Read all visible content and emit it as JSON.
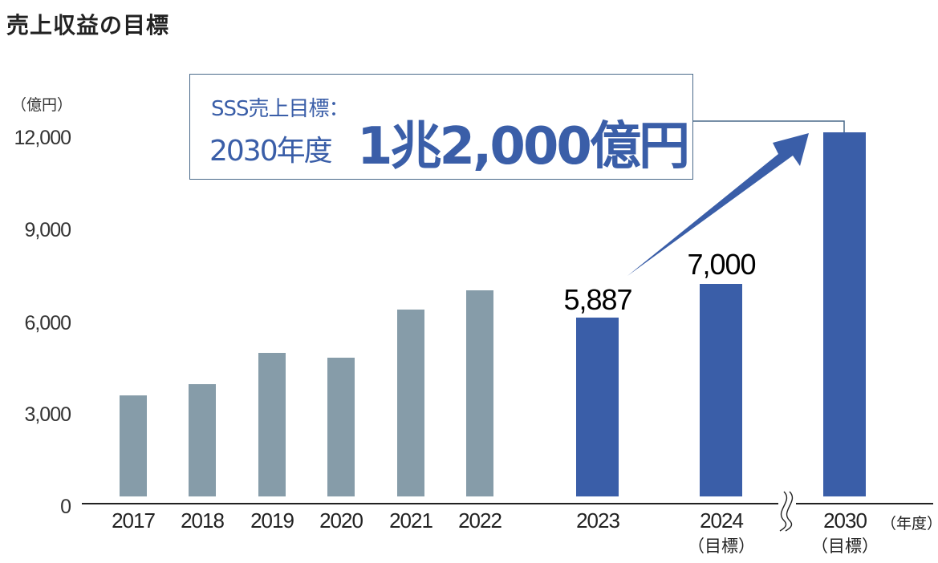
{
  "title": "売上収益の目標",
  "unit_label": "（億円）",
  "x_unit_label": "（年度）",
  "colors": {
    "historical_bar": "#869ca9",
    "target_bar": "#3a5ea8",
    "callout_border": "#4a6a8a",
    "callout_text": "#3a5ea8",
    "arrow": "#3a5ea8"
  },
  "callout": {
    "line1": "SSS売上目標：",
    "line2_prefix": "2030年度",
    "line2_value": "1兆2,000億円"
  },
  "y_ticks": [
    "12,000",
    "9,000",
    "6,000",
    "3,000",
    "0"
  ],
  "bars": [
    {
      "year": "2017",
      "sub": "",
      "value": 3340,
      "kind": "hist",
      "label": ""
    },
    {
      "year": "2018",
      "sub": "",
      "value": 3700,
      "kind": "hist",
      "label": ""
    },
    {
      "year": "2019",
      "sub": "",
      "value": 4720,
      "kind": "hist",
      "label": ""
    },
    {
      "year": "2020",
      "sub": "",
      "value": 4560,
      "kind": "hist",
      "label": ""
    },
    {
      "year": "2021",
      "sub": "",
      "value": 6160,
      "kind": "hist",
      "label": ""
    },
    {
      "year": "2022",
      "sub": "",
      "value": 6800,
      "kind": "hist",
      "label": ""
    },
    {
      "year": "2023",
      "sub": "",
      "value": 5887,
      "kind": "target",
      "label": "5,887"
    },
    {
      "year": "2024",
      "sub": "（目標）",
      "value": 7000,
      "kind": "target",
      "label": "7,000"
    },
    {
      "year": "2030",
      "sub": "（目標）",
      "value": 12000,
      "kind": "target",
      "label": ""
    }
  ],
  "chart_data": {
    "type": "bar",
    "title": "売上収益の目標",
    "xlabel": "（年度）",
    "ylabel": "（億円）",
    "ylim": [
      0,
      12000
    ],
    "y_ticks": [
      0,
      3000,
      6000,
      9000,
      12000
    ],
    "grid": false,
    "legend": null,
    "categories": [
      "2017",
      "2018",
      "2019",
      "2020",
      "2021",
      "2022",
      "2023",
      "2024（目標）",
      "2030（目標）"
    ],
    "values": [
      3340,
      3700,
      4720,
      4560,
      6160,
      6800,
      5887,
      7000,
      12000
    ],
    "data_labels": {
      "2023": "5,887",
      "2024（目標）": "7,000"
    },
    "annotations": [
      "SSS売上目標：2030年度 1兆2,000億円",
      "Arrow from 2023 toward 2030 target",
      "Axis break between 2024 and 2030"
    ]
  }
}
